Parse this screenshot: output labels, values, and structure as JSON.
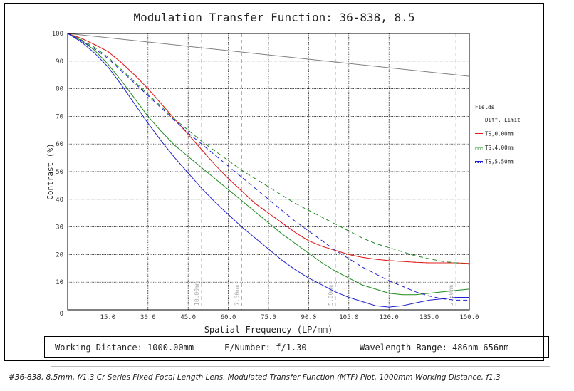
{
  "chart_data": {
    "type": "line",
    "title": "Modulation Transfer Function: 36-838, 8.5",
    "xlabel": "Spatial Frequency (LP/mm)",
    "ylabel": "Contrast (%)",
    "xlim": [
      0,
      150
    ],
    "ylim": [
      0,
      100
    ],
    "x_ticks": [
      "15.0",
      "30.0",
      "45.0",
      "60.0",
      "75.0",
      "90.0",
      "105.0",
      "120.0",
      "135.0",
      "150.0"
    ],
    "y_ticks": [
      "0",
      "10",
      "20",
      "30",
      "40",
      "50",
      "60",
      "70",
      "80",
      "90",
      "100"
    ],
    "grid": true,
    "legend_title": "Fields",
    "legend_position": "right",
    "vertical_markers": [
      {
        "x": 50,
        "label": "10.00mm"
      },
      {
        "x": 65,
        "label": "7.50mm"
      },
      {
        "x": 100,
        "label": "5.00mm"
      },
      {
        "x": 145,
        "label": "2.50mm"
      }
    ],
    "series": [
      {
        "name": "Diff. Limit",
        "color": "#808080",
        "style": "solid",
        "x": [
          0,
          150
        ],
        "y": [
          100,
          84.5
        ]
      },
      {
        "name": "TS,0.00mm",
        "color": "#e02020",
        "style": "tangential-solid",
        "x": [
          0,
          5,
          10,
          15,
          20,
          25,
          30,
          35,
          40,
          45,
          50,
          55,
          60,
          65,
          70,
          75,
          80,
          85,
          90,
          95,
          100,
          105,
          110,
          115,
          120,
          125,
          130,
          135,
          140,
          145,
          150
        ],
        "y": [
          100,
          98.3,
          96,
          93.5,
          89.5,
          85,
          80,
          74.5,
          69,
          63.5,
          58,
          52.5,
          47.5,
          43,
          38.5,
          35,
          31.5,
          28,
          25,
          23,
          21.5,
          20,
          19,
          18.3,
          17.8,
          17.5,
          17.2,
          17,
          17,
          17,
          16.8
        ]
      },
      {
        "name": "TS,0.00mm (sagittal)",
        "color": "#e02020",
        "style": "sagittal-dashed",
        "x": [
          0,
          5,
          10,
          15,
          20,
          25,
          30,
          35,
          40,
          45,
          50,
          55,
          60,
          65,
          70,
          75,
          80,
          85,
          90,
          95,
          100,
          105,
          110,
          115,
          120,
          125,
          130,
          135,
          140,
          145,
          150
        ],
        "y": [
          100,
          98.3,
          96,
          93.5,
          89.5,
          85,
          80,
          74.5,
          69,
          63.5,
          58,
          52.5,
          47.5,
          43,
          38.5,
          35,
          31.5,
          28,
          25,
          23,
          21.5,
          20,
          19,
          18.3,
          17.8,
          17.5,
          17.2,
          17,
          17,
          17,
          16.8
        ]
      },
      {
        "name": "TS,4.00mm",
        "color": "#1e8a1e",
        "style": "tangential-solid",
        "x": [
          0,
          5,
          10,
          15,
          20,
          25,
          30,
          35,
          40,
          45,
          50,
          55,
          60,
          65,
          70,
          75,
          80,
          85,
          90,
          95,
          100,
          105,
          110,
          115,
          120,
          125,
          130,
          135,
          140,
          145,
          150
        ],
        "y": [
          100,
          97.5,
          94,
          89,
          83,
          76.5,
          70,
          64.5,
          59.5,
          55.5,
          51.5,
          47.5,
          43.5,
          39.5,
          35.5,
          31.5,
          27.5,
          24,
          20.5,
          17,
          14,
          11.5,
          9,
          7.5,
          6,
          5.5,
          5.5,
          6,
          6.5,
          7,
          7.5
        ]
      },
      {
        "name": "TS,4.00mm (sagittal)",
        "color": "#1e8a1e",
        "style": "sagittal-dashed",
        "x": [
          0,
          5,
          10,
          15,
          20,
          25,
          30,
          35,
          40,
          45,
          50,
          55,
          60,
          65,
          70,
          75,
          80,
          85,
          90,
          95,
          100,
          105,
          110,
          115,
          120,
          125,
          130,
          135,
          140,
          145,
          150
        ],
        "y": [
          100,
          97.8,
          95,
          91.5,
          87,
          82.5,
          78,
          73.5,
          69,
          65,
          61,
          57.5,
          54,
          50.5,
          47.5,
          44.5,
          41.5,
          38.5,
          36,
          33.5,
          31,
          28.5,
          26,
          24,
          22.5,
          21,
          19.5,
          18.5,
          17.5,
          17,
          16.5
        ]
      },
      {
        "name": "TS,5.50mm",
        "color": "#2020d0",
        "style": "tangential-solid",
        "x": [
          0,
          5,
          10,
          15,
          20,
          25,
          30,
          35,
          40,
          45,
          50,
          55,
          60,
          65,
          70,
          75,
          80,
          85,
          90,
          95,
          100,
          105,
          110,
          115,
          120,
          125,
          130,
          135,
          140,
          145,
          150
        ],
        "y": [
          100,
          97,
          93,
          88,
          81.5,
          74.5,
          67.5,
          61,
          55,
          49.5,
          44,
          39,
          34.5,
          30,
          26,
          22,
          18,
          14.5,
          11.5,
          9,
          6.5,
          4.5,
          3,
          1.5,
          1,
          1.5,
          2.5,
          3.5,
          4,
          4.5,
          4.5
        ]
      },
      {
        "name": "TS,5.50mm (sagittal)",
        "color": "#2020d0",
        "style": "sagittal-dashed",
        "x": [
          0,
          5,
          10,
          15,
          20,
          25,
          30,
          35,
          40,
          45,
          50,
          55,
          60,
          65,
          70,
          75,
          80,
          85,
          90,
          95,
          100,
          105,
          110,
          115,
          120,
          125,
          130,
          135,
          140,
          145,
          150
        ],
        "y": [
          100,
          97.5,
          94.5,
          91,
          86.5,
          82,
          77.5,
          73,
          68.5,
          64,
          60,
          56,
          52,
          48,
          44,
          40,
          36,
          32,
          28.5,
          25,
          21.5,
          18.5,
          15.5,
          13,
          10.5,
          8.5,
          6.5,
          5,
          4,
          3.5,
          3.5
        ]
      }
    ]
  },
  "footer": {
    "working_distance": "Working Distance: 1000.00mm",
    "f_number": "F/Number: f/1.30",
    "wavelength_range": "Wavelength Range: 486nm-656nm"
  },
  "caption": "#36-838, 8.5mm, f/1.3 Cr Series Fixed Focal Length Lens, Modulated Transfer Function (MTF) Plot, 1000mm Working Distance, f1.3"
}
